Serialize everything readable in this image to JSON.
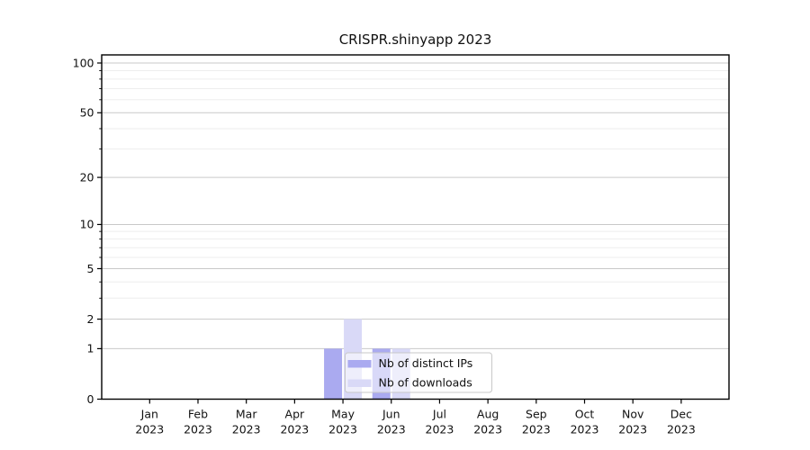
{
  "chart_data": {
    "type": "bar",
    "title": "CRISPR.shinyapp 2023",
    "categories": [
      "Jan",
      "Feb",
      "Mar",
      "Apr",
      "May",
      "Jun",
      "Jul",
      "Aug",
      "Sep",
      "Oct",
      "Nov",
      "Dec"
    ],
    "year_label": "2023",
    "series": [
      {
        "name": "Nb of distinct IPs",
        "color": "#aaaaf0",
        "values": [
          0,
          0,
          0,
          0,
          1,
          1,
          0,
          0,
          0,
          0,
          0,
          0
        ]
      },
      {
        "name": "Nb of downloads",
        "color": "#d9d9f7",
        "values": [
          0,
          0,
          0,
          0,
          2,
          1,
          0,
          0,
          0,
          0,
          0,
          0
        ]
      }
    ],
    "y_axis": {
      "scale": "log10(value+1)",
      "major_ticks": [
        0,
        1,
        2,
        5,
        10,
        20,
        50,
        100
      ],
      "minor_gridlines": [
        3,
        4,
        6,
        7,
        8,
        9,
        30,
        40,
        60,
        70,
        80,
        90
      ],
      "max_value": 112
    },
    "x_axis": {
      "label_line2": "2023"
    },
    "legend": {
      "entries": [
        "Nb of distinct IPs",
        "Nb of downloads"
      ],
      "position": "inside-bottom-center"
    },
    "grid": true,
    "colors": {
      "axis": "#000000",
      "major_grid": "#c9c9c9",
      "minor_grid": "#ededed",
      "legend_border": "#c8c8c8",
      "text": "#111111"
    }
  }
}
